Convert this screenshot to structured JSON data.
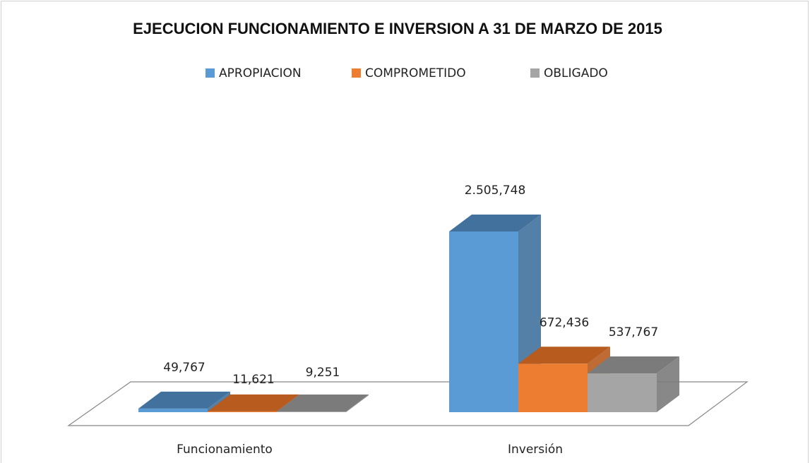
{
  "chart_data": {
    "type": "bar",
    "title": "EJECUCION FUNCIONAMIENTO E INVERSION A 31 DE MARZO DE 2015",
    "categories": [
      "Funcionamiento",
      "Inversión"
    ],
    "legend": "top",
    "series": [
      {
        "name": "APROPIACION",
        "color": "#5b9bd5",
        "shade": "#41719c",
        "values": [
          49.767,
          2505.748
        ],
        "value_labels": [
          "49,767",
          "2.505,748"
        ]
      },
      {
        "name": "COMPROMETIDO",
        "color": "#ed7d31",
        "shade": "#b75b1f",
        "values": [
          11.621,
          672.436
        ],
        "value_labels": [
          "11,621",
          "672,436"
        ]
      },
      {
        "name": "OBLIGADO",
        "color": "#a5a5a5",
        "shade": "#7b7b7b",
        "values": [
          9.251,
          537.767
        ],
        "value_labels": [
          "9,251",
          "537,767"
        ]
      }
    ]
  }
}
